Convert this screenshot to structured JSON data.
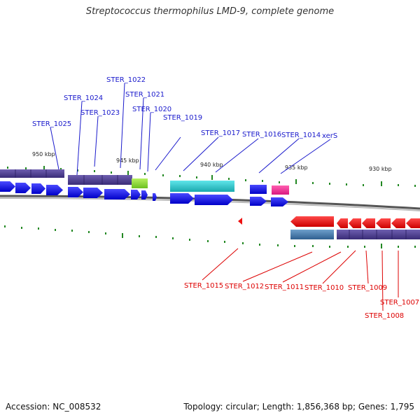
{
  "title": "Streptococcus thermophilus LMD-9, complete genome",
  "footer": {
    "accession": "Accession: NC_008532",
    "summary": "Topology: circular; Length: 1,856,368 bp; Genes: 1,795"
  },
  "colors": {
    "forward_label": "#1a1acc",
    "reverse_label": "#dd0000",
    "backbone": "#8a8a8a",
    "tick": "#228822",
    "gene_forward": "#1010e0",
    "gene_reverse": "#ee1111",
    "pseudogene": "#5b4a9a",
    "cyan_feature": "#27c4c8",
    "magenta_feature": "#ee3399",
    "green_feature": "#8fdc3a",
    "steel_feature": "#4a80b0"
  },
  "scale_labels": [
    {
      "text": "950 kbp",
      "id": "950"
    },
    {
      "text": "945 kbp",
      "id": "945"
    },
    {
      "text": "940 kbp",
      "id": "940"
    },
    {
      "text": "935 kbp",
      "id": "935"
    },
    {
      "text": "930 kbp",
      "id": "930"
    }
  ],
  "forward_labels": [
    {
      "text": "STER_1022"
    },
    {
      "text": "STER_1024"
    },
    {
      "text": "STER_1021"
    },
    {
      "text": "STER_1023"
    },
    {
      "text": "STER_1020"
    },
    {
      "text": "STER_1019"
    },
    {
      "text": "STER_1025"
    },
    {
      "text": "STER_1017"
    },
    {
      "text": "STER_1016"
    },
    {
      "text": "STER_1014"
    },
    {
      "text": "xerS"
    }
  ],
  "reverse_labels": [
    {
      "text": "STER_1015"
    },
    {
      "text": "STER_1012"
    },
    {
      "text": "STER_1011"
    },
    {
      "text": "STER_1010"
    },
    {
      "text": "STER_1009"
    },
    {
      "text": "STER_1007"
    },
    {
      "text": "STER_1008"
    }
  ]
}
